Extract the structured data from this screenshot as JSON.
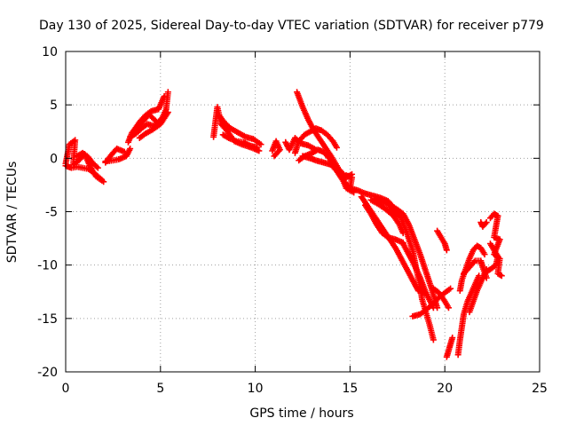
{
  "chart_data": {
    "type": "scatter",
    "title": "Day 130 of 2025, Sidereal Day-to-day VTEC variation (SDTVAR) for receiver p779",
    "xlabel": "GPS time / hours",
    "ylabel": "SDTVAR / TECUs",
    "xlim": [
      0,
      25
    ],
    "ylim": [
      -20,
      10
    ],
    "xticks": [
      "0",
      "5",
      "10",
      "15",
      "20",
      "25"
    ],
    "yticks": [
      "-20",
      "-15",
      "-10",
      "-5",
      "0",
      "5",
      "10"
    ],
    "grid": true,
    "marker": "+",
    "color": "#ff0000",
    "series": [
      {
        "name": "p779",
        "segments": [
          [
            [
              0.0,
              -0.5
            ],
            [
              0.2,
              1.3
            ],
            [
              0.5,
              1.7
            ],
            [
              0.4,
              -0.6
            ],
            [
              0.7,
              -0.2
            ],
            [
              1.0,
              0.4
            ],
            [
              1.3,
              -0.8
            ],
            [
              1.6,
              -1.7
            ],
            [
              2.0,
              -2.2
            ]
          ],
          [
            [
              0.0,
              -0.7
            ],
            [
              0.3,
              -0.9
            ],
            [
              0.6,
              -0.8
            ],
            [
              0.9,
              -0.9
            ],
            [
              1.2,
              -1.0
            ],
            [
              1.5,
              -1.4
            ],
            [
              1.9,
              -2.0
            ]
          ],
          [
            [
              0.6,
              0.2
            ],
            [
              0.9,
              0.5
            ],
            [
              1.2,
              0.1
            ],
            [
              1.4,
              -0.4
            ],
            [
              1.7,
              -0.9
            ]
          ],
          [
            [
              2.1,
              -0.4
            ],
            [
              2.4,
              0.3
            ],
            [
              2.7,
              0.9
            ],
            [
              3.1,
              0.6
            ]
          ],
          [
            [
              2.1,
              -0.3
            ],
            [
              2.5,
              -0.2
            ],
            [
              2.8,
              -0.1
            ],
            [
              3.2,
              0.2
            ],
            [
              3.4,
              0.9
            ]
          ],
          [
            [
              3.3,
              1.5
            ],
            [
              3.5,
              2.4
            ],
            [
              3.8,
              3.0
            ],
            [
              4.1,
              3.5
            ],
            [
              4.4,
              4.1
            ],
            [
              4.8,
              3.4
            ]
          ],
          [
            [
              3.4,
              2.0
            ],
            [
              3.7,
              2.3
            ],
            [
              4.0,
              2.8
            ],
            [
              4.3,
              3.2
            ],
            [
              4.7,
              3.0
            ],
            [
              5.1,
              3.8
            ],
            [
              5.3,
              4.6
            ],
            [
              5.4,
              6.2
            ]
          ],
          [
            [
              3.6,
              2.6
            ],
            [
              3.9,
              3.4
            ],
            [
              4.2,
              4.0
            ],
            [
              4.5,
              4.4
            ],
            [
              4.9,
              4.6
            ],
            [
              5.2,
              5.8
            ]
          ],
          [
            [
              3.9,
              1.9
            ],
            [
              4.2,
              2.3
            ],
            [
              4.6,
              2.7
            ],
            [
              5.0,
              3.2
            ],
            [
              5.4,
              4.3
            ]
          ],
          [
            [
              7.8,
              2.0
            ],
            [
              7.9,
              3.4
            ],
            [
              8.0,
              4.8
            ],
            [
              8.2,
              3.2
            ],
            [
              8.5,
              2.6
            ],
            [
              8.9,
              1.6
            ],
            [
              9.3,
              1.3
            ],
            [
              9.8,
              1.0
            ],
            [
              10.2,
              0.7
            ]
          ],
          [
            [
              8.1,
              4.0
            ],
            [
              8.4,
              3.3
            ],
            [
              8.7,
              2.8
            ],
            [
              9.1,
              2.4
            ],
            [
              9.5,
              2.0
            ],
            [
              9.9,
              1.8
            ],
            [
              10.3,
              1.3
            ]
          ],
          [
            [
              8.3,
              2.2
            ],
            [
              8.6,
              1.9
            ],
            [
              9.0,
              1.6
            ],
            [
              9.4,
              1.5
            ],
            [
              9.7,
              1.2
            ],
            [
              10.1,
              1.0
            ]
          ],
          [
            [
              10.9,
              0.7
            ],
            [
              11.1,
              1.6
            ],
            [
              11.3,
              0.8
            ],
            [
              11.0,
              0.2
            ]
          ],
          [
            [
              11.6,
              1.5
            ],
            [
              11.8,
              0.8
            ],
            [
              12.1,
              1.9
            ],
            [
              12.4,
              1.4
            ],
            [
              12.8,
              1.2
            ],
            [
              13.2,
              0.8
            ]
          ],
          [
            [
              12.1,
              0.5
            ],
            [
              12.3,
              1.6
            ],
            [
              12.6,
              2.2
            ],
            [
              12.9,
              2.5
            ],
            [
              13.2,
              2.8
            ],
            [
              13.5,
              2.6
            ],
            [
              13.8,
              2.2
            ],
            [
              14.1,
              1.6
            ],
            [
              14.3,
              1.0
            ]
          ],
          [
            [
              12.2,
              6.2
            ],
            [
              12.5,
              4.8
            ],
            [
              12.8,
              3.6
            ],
            [
              13.1,
              2.6
            ],
            [
              13.4,
              1.8
            ],
            [
              13.7,
              1.0
            ],
            [
              14.0,
              0.2
            ],
            [
              14.4,
              -1.0
            ],
            [
              14.8,
              -1.8
            ],
            [
              15.1,
              -1.5
            ]
          ],
          [
            [
              12.3,
              -0.2
            ],
            [
              12.6,
              0.2
            ],
            [
              13.0,
              0.5
            ],
            [
              13.3,
              0.8
            ],
            [
              13.6,
              0.6
            ],
            [
              13.9,
              0.0
            ],
            [
              14.2,
              -0.7
            ],
            [
              14.5,
              -1.5
            ],
            [
              14.8,
              -2.8
            ],
            [
              15.2,
              -3.2
            ]
          ],
          [
            [
              12.5,
              0.2
            ],
            [
              12.9,
              0.0
            ],
            [
              13.2,
              -0.2
            ],
            [
              13.6,
              -0.4
            ],
            [
              14.0,
              -0.6
            ],
            [
              14.3,
              -1.2
            ],
            [
              14.6,
              -2.0
            ],
            [
              14.9,
              -2.6
            ]
          ],
          [
            [
              14.8,
              -1.6
            ],
            [
              15.1,
              -1.8
            ],
            [
              15.0,
              -2.8
            ],
            [
              15.4,
              -3.0
            ],
            [
              15.8,
              -3.3
            ],
            [
              16.2,
              -3.5
            ],
            [
              16.6,
              -3.7
            ],
            [
              17.0,
              -4.0
            ],
            [
              17.3,
              -4.6
            ]
          ],
          [
            [
              15.6,
              -3.6
            ],
            [
              15.9,
              -4.4
            ],
            [
              16.2,
              -5.2
            ],
            [
              16.5,
              -6.0
            ],
            [
              16.8,
              -6.8
            ],
            [
              17.1,
              -7.6
            ],
            [
              17.4,
              -8.4
            ],
            [
              17.7,
              -9.4
            ],
            [
              18.0,
              -10.4
            ],
            [
              18.3,
              -11.4
            ],
            [
              18.6,
              -12.4
            ],
            [
              19.0,
              -12.6
            ]
          ],
          [
            [
              15.8,
              -4.4
            ],
            [
              16.1,
              -5.2
            ],
            [
              16.4,
              -6.2
            ],
            [
              16.7,
              -7.0
            ],
            [
              17.0,
              -7.4
            ],
            [
              17.4,
              -7.6
            ],
            [
              17.8,
              -7.9
            ]
          ],
          [
            [
              16.1,
              -3.9
            ],
            [
              16.5,
              -4.3
            ],
            [
              16.9,
              -4.8
            ],
            [
              17.3,
              -5.4
            ],
            [
              17.6,
              -6.2
            ],
            [
              17.8,
              -7.0
            ]
          ],
          [
            [
              16.3,
              -3.8
            ],
            [
              16.7,
              -4.1
            ],
            [
              17.1,
              -4.4
            ],
            [
              17.5,
              -4.8
            ],
            [
              17.8,
              -5.2
            ],
            [
              18.1,
              -6.2
            ],
            [
              18.4,
              -7.6
            ],
            [
              18.7,
              -9.0
            ],
            [
              19.0,
              -10.6
            ],
            [
              19.3,
              -12.2
            ],
            [
              19.6,
              -14.0
            ]
          ],
          [
            [
              17.1,
              -4.6
            ],
            [
              17.4,
              -5.1
            ],
            [
              17.7,
              -5.6
            ],
            [
              18.0,
              -7.0
            ],
            [
              18.3,
              -8.6
            ],
            [
              18.5,
              -10.4
            ],
            [
              18.7,
              -12.0
            ],
            [
              18.8,
              -13.2
            ],
            [
              19.0,
              -14.4
            ],
            [
              19.2,
              -15.6
            ],
            [
              19.4,
              -17.0
            ]
          ],
          [
            [
              17.8,
              -8.0
            ],
            [
              18.1,
              -9.0
            ],
            [
              18.4,
              -10.0
            ],
            [
              18.7,
              -11.2
            ],
            [
              19.0,
              -12.6
            ],
            [
              19.4,
              -14.0
            ]
          ],
          [
            [
              18.3,
              -14.8
            ],
            [
              18.7,
              -14.6
            ],
            [
              19.0,
              -14.2
            ],
            [
              19.4,
              -13.6
            ],
            [
              19.7,
              -13.0
            ],
            [
              20.0,
              -12.6
            ],
            [
              20.3,
              -12.2
            ]
          ],
          [
            [
              19.6,
              -6.8
            ],
            [
              19.8,
              -7.4
            ],
            [
              20.0,
              -8.0
            ],
            [
              20.1,
              -8.6
            ]
          ],
          [
            [
              19.4,
              -12.2
            ],
            [
              19.7,
              -12.6
            ],
            [
              20.0,
              -13.4
            ],
            [
              20.2,
              -14.0
            ]
          ],
          [
            [
              20.1,
              -18.6
            ],
            [
              20.2,
              -18.0
            ],
            [
              20.3,
              -17.4
            ],
            [
              20.4,
              -16.8
            ]
          ],
          [
            [
              20.7,
              -18.4
            ],
            [
              20.8,
              -17.0
            ],
            [
              20.9,
              -15.8
            ],
            [
              21.0,
              -14.6
            ],
            [
              21.2,
              -13.4
            ],
            [
              21.4,
              -12.6
            ],
            [
              21.6,
              -11.8
            ],
            [
              21.8,
              -11.0
            ]
          ],
          [
            [
              20.8,
              -12.4
            ],
            [
              20.9,
              -11.4
            ],
            [
              21.1,
              -10.4
            ],
            [
              21.3,
              -9.4
            ],
            [
              21.5,
              -8.6
            ],
            [
              21.7,
              -8.2
            ],
            [
              21.9,
              -8.4
            ],
            [
              22.1,
              -9.0
            ]
          ],
          [
            [
              21.0,
              -10.8
            ],
            [
              21.3,
              -10.2
            ],
            [
              21.6,
              -9.6
            ],
            [
              21.9,
              -9.6
            ],
            [
              22.0,
              -10.2
            ],
            [
              22.2,
              -11.2
            ]
          ],
          [
            [
              21.3,
              -14.4
            ],
            [
              21.5,
              -13.4
            ],
            [
              21.7,
              -12.4
            ],
            [
              21.9,
              -11.6
            ],
            [
              22.2,
              -10.4
            ]
          ],
          [
            [
              21.9,
              -6.0
            ],
            [
              22.0,
              -6.4
            ],
            [
              22.2,
              -6.0
            ]
          ],
          [
            [
              22.4,
              -5.6
            ],
            [
              22.6,
              -5.2
            ],
            [
              22.8,
              -5.4
            ],
            [
              22.6,
              -7.4
            ],
            [
              22.9,
              -7.6
            ],
            [
              22.6,
              -9.0
            ],
            [
              22.9,
              -9.4
            ],
            [
              22.8,
              -10.8
            ],
            [
              23.0,
              -11.0
            ]
          ],
          [
            [
              22.4,
              -8.0
            ],
            [
              22.6,
              -8.6
            ],
            [
              22.8,
              -9.2
            ],
            [
              22.7,
              -10.0
            ],
            [
              22.4,
              -10.4
            ],
            [
              22.2,
              -10.6
            ]
          ]
        ]
      }
    ]
  }
}
